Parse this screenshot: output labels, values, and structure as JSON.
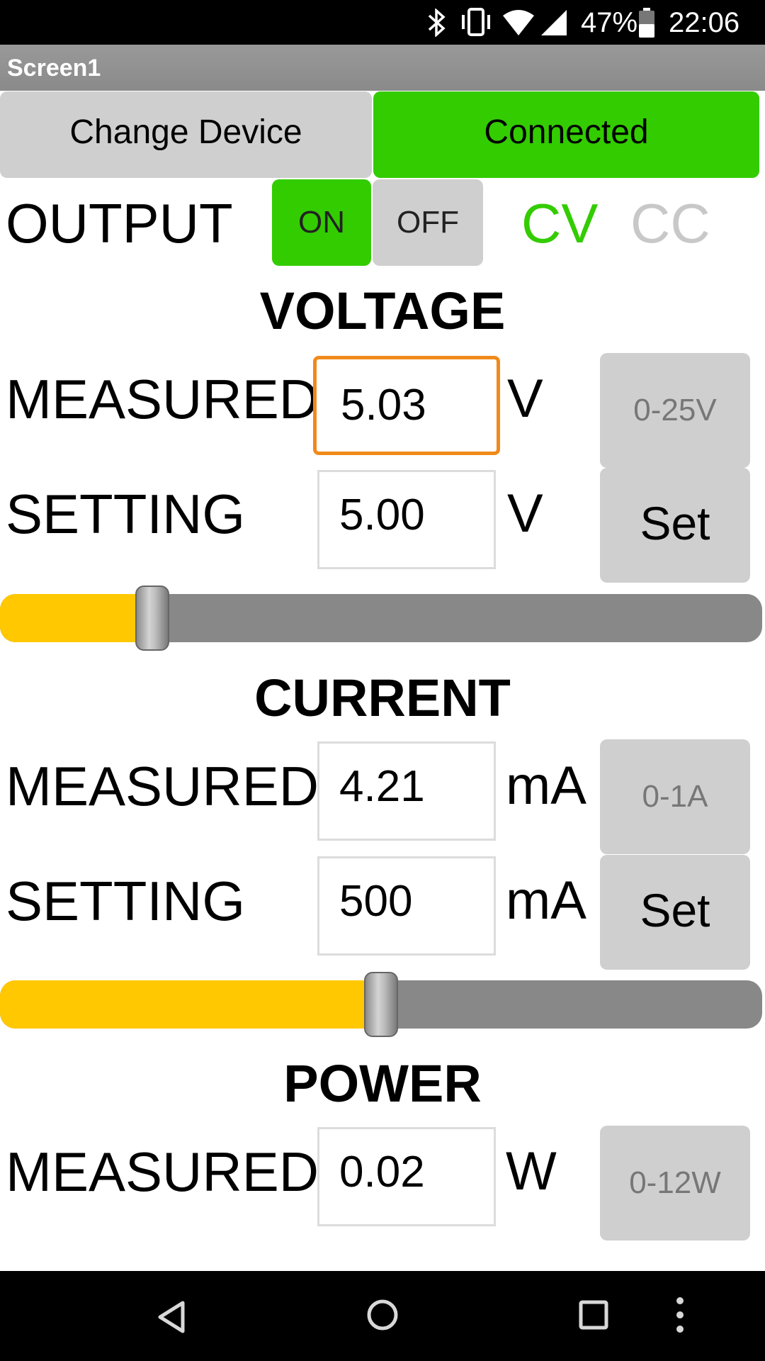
{
  "status_bar": {
    "battery": "47%",
    "time": "22:06"
  },
  "title_bar": {
    "title": "Screen1"
  },
  "top_buttons": {
    "change_device": "Change Device",
    "connection_status": "Connected"
  },
  "output": {
    "label": "OUTPUT",
    "on_label": "ON",
    "off_label": "OFF",
    "cv_label": "CV",
    "cc_label": "CC",
    "active_color": "#33cc00",
    "inactive_mode_color": "#c8c8c8"
  },
  "voltage": {
    "heading": "VOLTAGE",
    "measured_label": "MEASURED",
    "measured_value": "5.03",
    "measured_unit": "V",
    "range_label": "0-25V",
    "setting_label": "SETTING",
    "setting_value": "5.00",
    "setting_unit": "V",
    "set_label": "Set",
    "slider_fraction": 0.2
  },
  "current": {
    "heading": "CURRENT",
    "measured_label": "MEASURED",
    "measured_value": "4.21",
    "measured_unit": "mA",
    "range_label": "0-1A",
    "setting_label": "SETTING",
    "setting_value": "500",
    "setting_unit": "mA",
    "set_label": "Set",
    "slider_fraction": 0.5
  },
  "power": {
    "heading": "POWER",
    "measured_label": "MEASURED",
    "measured_value": "0.02",
    "measured_unit": "W",
    "range_label": "0-12W"
  },
  "nav_bar": {
    "icons": [
      "back-icon",
      "home-icon",
      "recents-icon",
      "more-vert-icon"
    ]
  },
  "colors": {
    "accent_green": "#33cc00",
    "slider_fill": "#ffc800",
    "focus_orange": "#f08a1a"
  }
}
